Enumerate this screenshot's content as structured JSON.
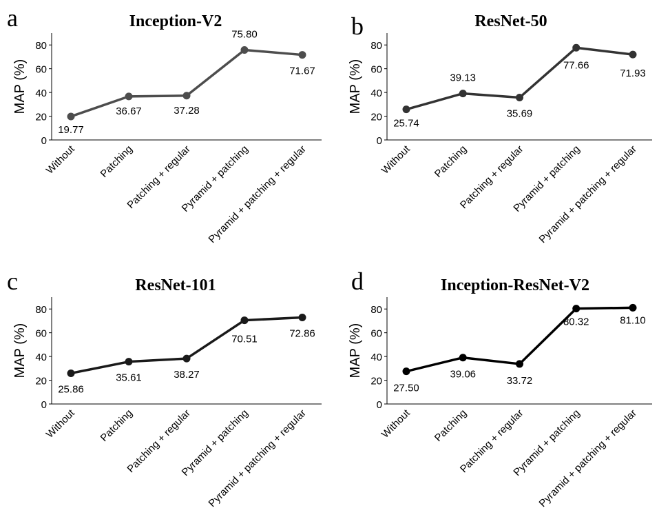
{
  "chart_data": [
    {
      "type": "line",
      "panel_letter": "a",
      "title": "Inception-V2",
      "ylabel": "MAP (%)",
      "xlabel": "",
      "categories": [
        "Without",
        "Patching",
        "Patching + regular",
        "Pyramid + patching",
        "Pyramid + patching + regular"
      ],
      "values": [
        19.77,
        36.67,
        37.28,
        75.8,
        71.67
      ],
      "value_labels": [
        "19.77",
        "36.67",
        "37.28",
        "75.80",
        "71.67"
      ],
      "ylim": [
        0,
        90
      ],
      "yticks": [
        0,
        20,
        40,
        60,
        80
      ],
      "color": "#4d4d4d",
      "grid": false
    },
    {
      "type": "line",
      "panel_letter": "b",
      "title": "ResNet-50",
      "ylabel": "MAP (%)",
      "xlabel": "",
      "categories": [
        "Without",
        "Patching",
        "Patching + regular",
        "Pyramid + patching",
        "Pyramid + patching + regular"
      ],
      "values": [
        25.74,
        39.13,
        35.69,
        77.66,
        71.93
      ],
      "value_labels": [
        "25.74",
        "39.13",
        "35.69",
        "77.66",
        "71.93"
      ],
      "ylim": [
        0,
        90
      ],
      "yticks": [
        0,
        20,
        40,
        60,
        80
      ],
      "color": "#333333",
      "grid": false
    },
    {
      "type": "line",
      "panel_letter": "c",
      "title": "ResNet-101",
      "ylabel": "MAP (%)",
      "xlabel": "",
      "categories": [
        "Without",
        "Patching",
        "Patching + regular",
        "Pyramid + patching",
        "Pyramid + patching + regular"
      ],
      "values": [
        25.86,
        35.61,
        38.27,
        70.51,
        72.86
      ],
      "value_labels": [
        "25.86",
        "35.61",
        "38.27",
        "70.51",
        "72.86"
      ],
      "ylim": [
        0,
        90
      ],
      "yticks": [
        0,
        20,
        40,
        60,
        80
      ],
      "color": "#1a1a1a",
      "grid": false
    },
    {
      "type": "line",
      "panel_letter": "d",
      "title": "Inception-ResNet-V2",
      "ylabel": "MAP (%)",
      "xlabel": "",
      "categories": [
        "Without",
        "Patching",
        "Patching + regular",
        "Pyramid + patching",
        "Pyramid + patching + regular"
      ],
      "values": [
        27.5,
        39.06,
        33.72,
        80.32,
        81.1
      ],
      "value_labels": [
        "27.50",
        "39.06",
        "33.72",
        "80.32",
        "81.10"
      ],
      "ylim": [
        0,
        90
      ],
      "yticks": [
        0,
        20,
        40,
        60,
        80
      ],
      "color": "#000000",
      "grid": false
    }
  ]
}
